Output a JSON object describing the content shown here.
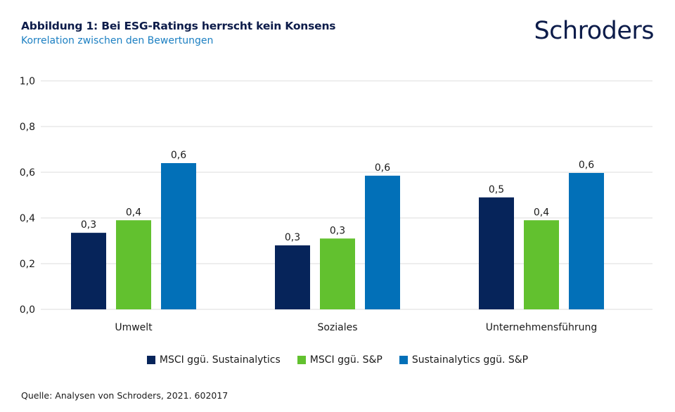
{
  "header": {
    "title": "Abbildung 1: Bei ESG-Ratings herrscht kein Konsens",
    "subtitle": "Korrelation zwischen den Bewertungen",
    "logo": "Schroders"
  },
  "footer": {
    "source": "Quelle: Analysen von Schroders, 2021. 602017"
  },
  "chart_data": {
    "type": "bar",
    "title": "Abbildung 1: Bei ESG-Ratings herrscht kein Konsens",
    "subtitle": "Korrelation zwischen den Bewertungen",
    "xlabel": "",
    "ylabel": "",
    "ylim": [
      0,
      1.0
    ],
    "yticks": [
      0.0,
      0.2,
      0.4,
      0.6,
      0.8,
      1.0
    ],
    "ytick_labels": [
      "0,0",
      "0,2",
      "0,4",
      "0,6",
      "0,8",
      "1,0"
    ],
    "grid": true,
    "legend_position": "bottom-center",
    "categories": [
      "Umwelt",
      "Soziales",
      "Unternehmensführung"
    ],
    "series": [
      {
        "name": "MSCI ggü. Sustainalytics",
        "color": "#06245a",
        "values": [
          0.335,
          0.28,
          0.49
        ],
        "data_labels": [
          "0,3",
          "0,3",
          "0,5"
        ]
      },
      {
        "name": "MSCI ggü. S&P",
        "color": "#62c12f",
        "values": [
          0.39,
          0.31,
          0.39
        ],
        "data_labels": [
          "0,4",
          "0,3",
          "0,4"
        ]
      },
      {
        "name": "Sustainalytics ggü. S&P",
        "color": "#0270b8",
        "values": [
          0.64,
          0.585,
          0.597
        ],
        "data_labels": [
          "0,6",
          "0,6",
          "0,6"
        ]
      }
    ]
  }
}
